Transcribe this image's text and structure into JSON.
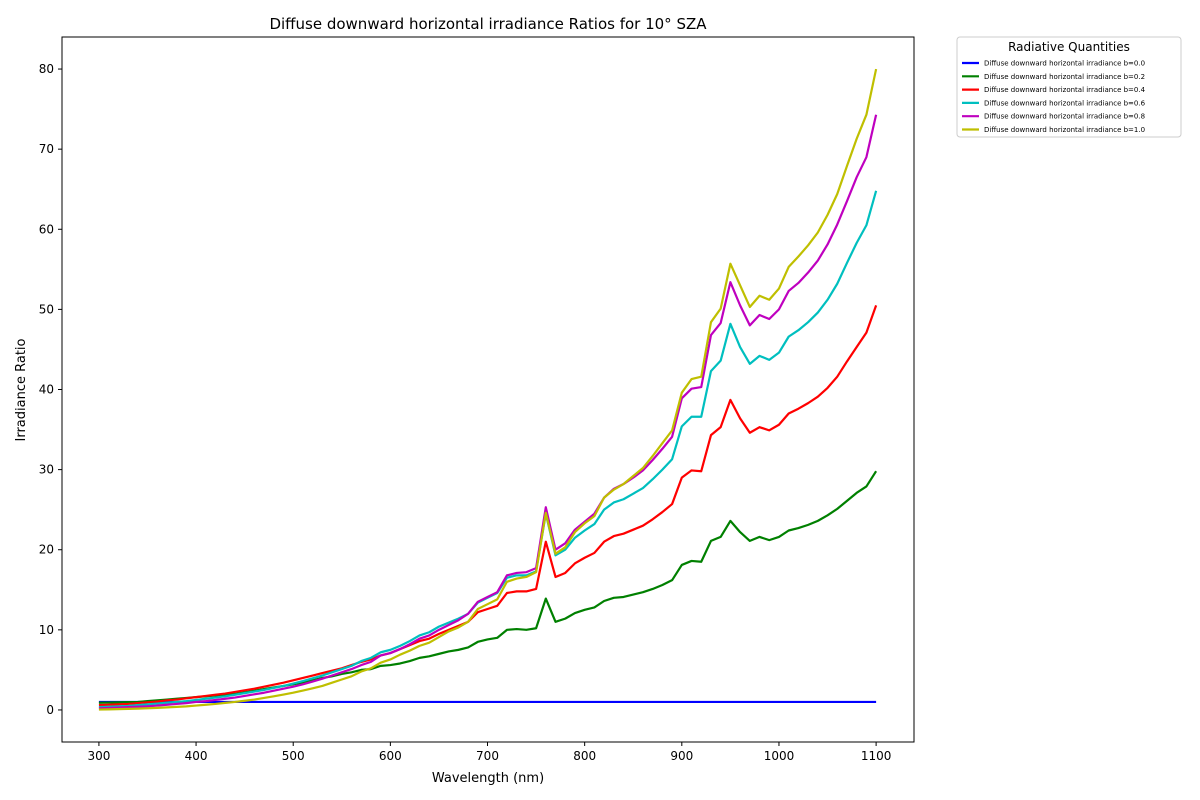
{
  "chart_data": {
    "type": "line",
    "title": "Diffuse downward horizontal irradiance Ratios for 10° SZA",
    "xlabel": "Wavelength (nm)",
    "ylabel": "Irradiance Ratio",
    "xlim": [
      262,
      1139
    ],
    "ylim": [
      -4,
      84
    ],
    "xticks": [
      300,
      400,
      500,
      600,
      700,
      800,
      900,
      1000,
      1100
    ],
    "yticks": [
      0,
      10,
      20,
      30,
      40,
      50,
      60,
      70,
      80
    ],
    "grid": false,
    "legend": {
      "title": "Radiative Quantities",
      "placement": "outside-top-right"
    },
    "x": [
      300,
      310,
      320,
      330,
      340,
      350,
      360,
      370,
      380,
      390,
      400,
      410,
      420,
      430,
      440,
      450,
      460,
      470,
      480,
      490,
      500,
      510,
      520,
      530,
      540,
      550,
      560,
      570,
      580,
      590,
      600,
      610,
      620,
      630,
      640,
      650,
      660,
      670,
      680,
      690,
      700,
      710,
      720,
      730,
      740,
      750,
      760,
      770,
      780,
      790,
      800,
      810,
      820,
      830,
      840,
      850,
      860,
      870,
      880,
      890,
      900,
      910,
      920,
      930,
      940,
      950,
      960,
      970,
      980,
      990,
      1000,
      1010,
      1020,
      1030,
      1040,
      1050,
      1060,
      1070,
      1080,
      1090,
      1100
    ],
    "series": [
      {
        "name": "Diffuse downward horizontal irradiance b=0.0",
        "color": "#0000ff",
        "values": [
          1,
          1,
          1,
          1,
          1,
          1,
          1,
          1,
          1,
          1,
          1,
          1,
          1,
          1,
          1,
          1,
          1,
          1,
          1,
          1,
          1,
          1,
          1,
          1,
          1,
          1,
          1,
          1,
          1,
          1,
          1,
          1,
          1,
          1,
          1,
          1,
          1,
          1,
          1,
          1,
          1,
          1,
          1,
          1,
          1,
          1,
          1,
          1,
          1,
          1,
          1,
          1,
          1,
          1,
          1,
          1,
          1,
          1,
          1,
          1,
          1,
          1,
          1,
          1,
          1,
          1,
          1,
          1,
          1,
          1,
          1,
          1,
          1,
          1,
          1,
          1,
          1,
          1,
          1,
          1,
          1
        ]
      },
      {
        "name": "Diffuse downward horizontal irradiance b=0.2",
        "color": "#008000",
        "values": [
          0.9,
          0.92,
          0.95,
          0.98,
          1.0,
          1.1,
          1.2,
          1.3,
          1.4,
          1.5,
          1.6,
          1.7,
          1.8,
          1.9,
          2.0,
          2.2,
          2.4,
          2.6,
          2.8,
          3.0,
          3.2,
          3.4,
          3.7,
          4.0,
          4.2,
          4.5,
          4.7,
          5.0,
          5.1,
          5.5,
          5.6,
          5.8,
          6.1,
          6.5,
          6.7,
          7.0,
          7.3,
          7.5,
          7.8,
          8.5,
          8.8,
          9.0,
          10.0,
          10.1,
          10.0,
          10.2,
          13.9,
          11.0,
          11.4,
          12.1,
          12.5,
          12.8,
          13.6,
          14.0,
          14.1,
          14.4,
          14.7,
          15.1,
          15.6,
          16.2,
          18.1,
          18.6,
          18.5,
          21.1,
          21.6,
          23.6,
          22.2,
          21.1,
          21.6,
          21.2,
          21.6,
          22.4,
          22.7,
          23.1,
          23.6,
          24.3,
          25.1,
          26.1,
          27.1,
          27.9,
          29.8
        ]
      },
      {
        "name": "Diffuse downward horizontal irradiance b=0.4",
        "color": "#ff0000",
        "values": [
          0.6,
          0.65,
          0.7,
          0.75,
          0.85,
          0.95,
          1.05,
          1.2,
          1.3,
          1.45,
          1.6,
          1.75,
          1.9,
          2.05,
          2.25,
          2.45,
          2.65,
          2.9,
          3.15,
          3.4,
          3.7,
          4.0,
          4.3,
          4.6,
          4.9,
          5.2,
          5.6,
          6.0,
          6.3,
          6.8,
          7.1,
          7.6,
          8.1,
          8.6,
          8.9,
          9.5,
          10.0,
          10.5,
          11.0,
          12.2,
          12.6,
          13.0,
          14.6,
          14.8,
          14.8,
          15.1,
          21.0,
          16.6,
          17.1,
          18.3,
          19.0,
          19.6,
          21.0,
          21.7,
          22.0,
          22.5,
          23.0,
          23.8,
          24.7,
          25.7,
          29.0,
          29.9,
          29.8,
          34.3,
          35.3,
          38.7,
          36.4,
          34.6,
          35.3,
          34.9,
          35.6,
          37.0,
          37.6,
          38.3,
          39.1,
          40.2,
          41.6,
          43.5,
          45.3,
          47.1,
          50.5
        ]
      },
      {
        "name": "Diffuse downward horizontal irradiance b=0.6",
        "color": "#00bfbf",
        "values": [
          0.35,
          0.4,
          0.45,
          0.5,
          0.6,
          0.7,
          0.8,
          0.9,
          1.0,
          1.1,
          1.25,
          1.4,
          1.55,
          1.7,
          1.9,
          2.1,
          2.3,
          2.5,
          2.75,
          3.0,
          3.3,
          3.6,
          3.95,
          4.3,
          4.7,
          5.1,
          5.5,
          6.1,
          6.5,
          7.2,
          7.5,
          8.0,
          8.6,
          9.3,
          9.7,
          10.4,
          10.9,
          11.4,
          12.0,
          13.4,
          14.0,
          14.6,
          16.5,
          16.8,
          16.8,
          17.3,
          24.5,
          19.3,
          20.0,
          21.5,
          22.4,
          23.2,
          25.0,
          25.9,
          26.3,
          27.0,
          27.7,
          28.8,
          30.0,
          31.3,
          35.4,
          36.6,
          36.6,
          42.3,
          43.6,
          48.2,
          45.3,
          43.2,
          44.2,
          43.7,
          44.6,
          46.6,
          47.4,
          48.4,
          49.6,
          51.2,
          53.2,
          55.8,
          58.3,
          60.5,
          64.8
        ]
      },
      {
        "name": "Diffuse downward horizontal irradiance b=0.8",
        "color": "#bf00bf",
        "values": [
          0.2,
          0.25,
          0.3,
          0.35,
          0.4,
          0.45,
          0.55,
          0.65,
          0.75,
          0.85,
          1.0,
          1.1,
          1.25,
          1.4,
          1.55,
          1.75,
          1.95,
          2.15,
          2.4,
          2.65,
          2.9,
          3.2,
          3.55,
          3.9,
          4.3,
          4.7,
          5.1,
          5.6,
          6.0,
          6.8,
          7.1,
          7.6,
          8.2,
          8.9,
          9.3,
          10.0,
          10.6,
          11.2,
          12.0,
          13.5,
          14.1,
          14.7,
          16.8,
          17.1,
          17.2,
          17.7,
          25.3,
          20.0,
          20.8,
          22.5,
          23.5,
          24.5,
          26.5,
          27.6,
          28.2,
          29.0,
          29.9,
          31.2,
          32.6,
          34.1,
          38.9,
          40.1,
          40.3,
          46.8,
          48.3,
          53.4,
          50.5,
          48.0,
          49.3,
          48.8,
          50.0,
          52.3,
          53.3,
          54.6,
          56.1,
          58.1,
          60.6,
          63.5,
          66.5,
          69.0,
          74.3
        ]
      },
      {
        "name": "Diffuse downward horizontal irradiance b=1.0",
        "color": "#bfbf00",
        "values": [
          0.05,
          0.07,
          0.1,
          0.13,
          0.17,
          0.21,
          0.26,
          0.32,
          0.38,
          0.45,
          0.55,
          0.65,
          0.75,
          0.88,
          1.0,
          1.15,
          1.3,
          1.5,
          1.7,
          1.92,
          2.15,
          2.42,
          2.7,
          3.0,
          3.4,
          3.8,
          4.2,
          4.8,
          5.2,
          5.9,
          6.3,
          6.9,
          7.4,
          8.0,
          8.4,
          9.1,
          9.8,
          10.3,
          11.0,
          12.6,
          13.2,
          13.8,
          16.0,
          16.4,
          16.6,
          17.2,
          24.6,
          19.5,
          20.3,
          22.2,
          23.3,
          24.2,
          26.5,
          27.5,
          28.2,
          29.2,
          30.2,
          31.7,
          33.3,
          34.9,
          39.6,
          41.3,
          41.6,
          48.4,
          50.1,
          55.7,
          53.0,
          50.3,
          51.7,
          51.2,
          52.6,
          55.3,
          56.6,
          58.0,
          59.6,
          61.8,
          64.4,
          67.9,
          71.3,
          74.3,
          80.0
        ]
      }
    ]
  }
}
